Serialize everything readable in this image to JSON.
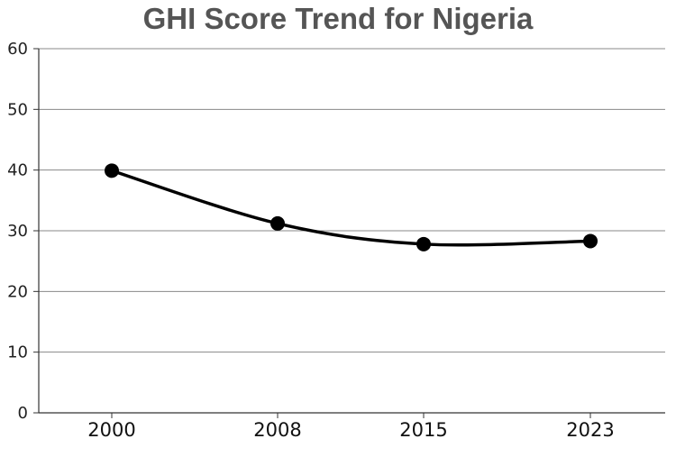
{
  "chart_data": {
    "type": "line",
    "title": "GHI Score Trend for Nigeria",
    "xlabel": "",
    "ylabel": "",
    "categories": [
      "2000",
      "2008",
      "2015",
      "2023"
    ],
    "series": [
      {
        "values": [
          39.9,
          31.2,
          27.8,
          28.3
        ]
      }
    ],
    "ylim": [
      0,
      60
    ],
    "yticks": [
      0,
      10,
      20,
      30,
      40,
      50,
      60
    ],
    "grid": true,
    "legend": "none",
    "colors": {
      "line": "#000000",
      "marker": "#000000",
      "grid": "#888888",
      "title": "#555555"
    }
  }
}
